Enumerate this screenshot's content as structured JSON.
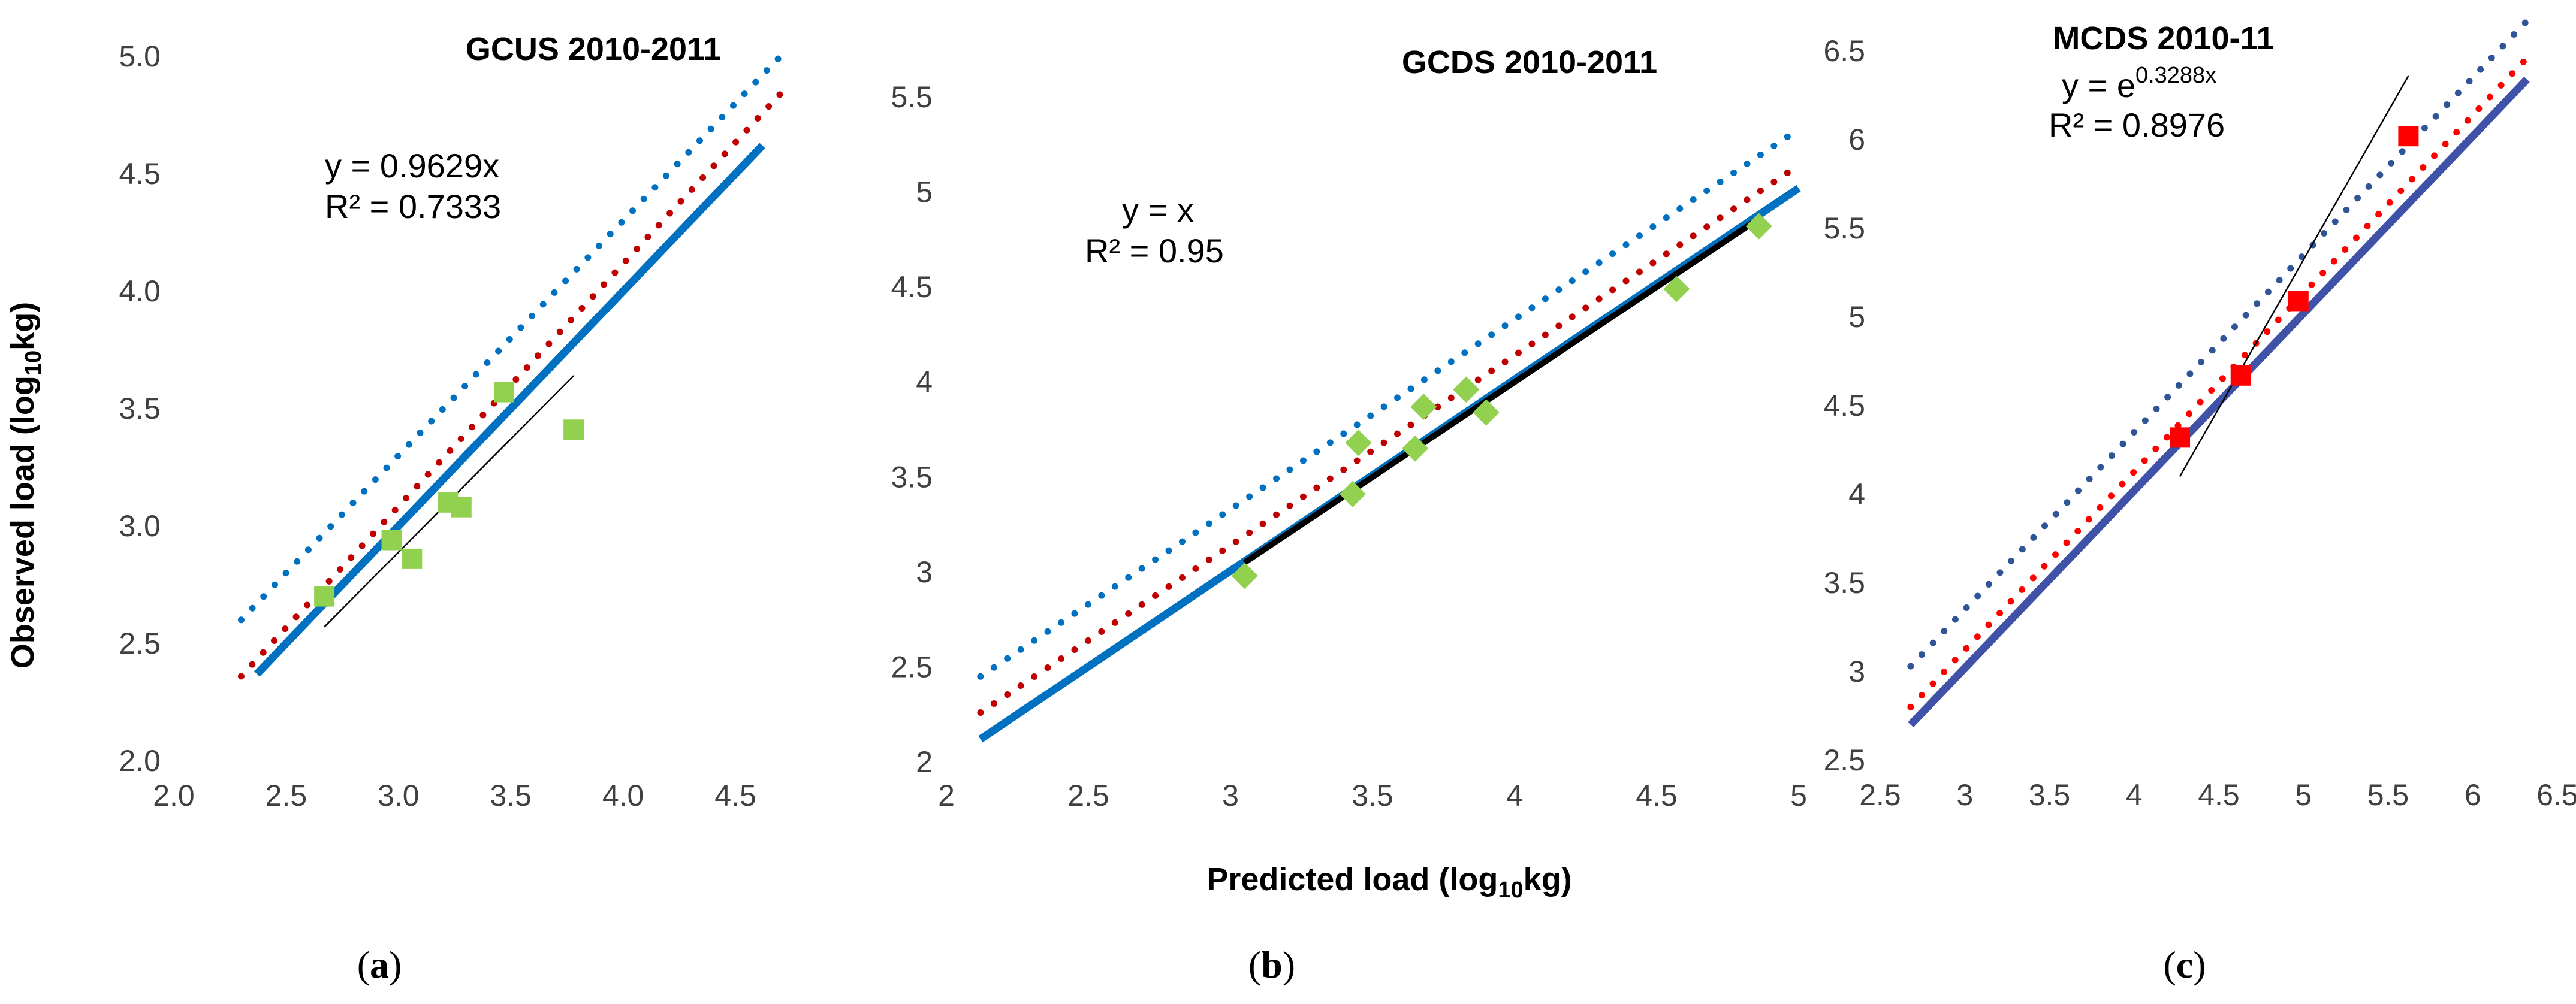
{
  "chart_data": [
    {
      "type": "scatter",
      "panel_label": "a",
      "title": "GCUS 2010-2011",
      "xlabel": "",
      "ylabel": "Observed load (log10kg)",
      "xlim": [
        2.0,
        4.7
      ],
      "ylim": [
        2.0,
        5.0
      ],
      "xticks": [
        "2.0",
        "2.5",
        "3.0",
        "3.5",
        "4.0",
        "4.5"
      ],
      "yticks": [
        "2.0",
        "2.5",
        "3.0",
        "3.5",
        "4.0",
        "4.5",
        "5.0"
      ],
      "equation": "y = 0.9629x",
      "r2": "R² = 0.7333",
      "points": {
        "x": [
          2.67,
          2.97,
          3.06,
          3.22,
          3.28,
          3.47,
          3.78
        ],
        "y": [
          2.7,
          2.94,
          2.86,
          3.1,
          3.08,
          3.57,
          3.41
        ],
        "color": "#92d050",
        "marker": "square"
      },
      "series": [
        {
          "name": "blue dotted",
          "x": [
            2.3,
            4.7
          ],
          "y": [
            2.6,
            5.0
          ],
          "style": "dotted",
          "color": "#0070c0"
        },
        {
          "name": "red dotted",
          "x": [
            2.3,
            4.7
          ],
          "y": [
            2.36,
            4.84
          ],
          "style": "dotted",
          "color": "#c00000"
        },
        {
          "name": "blue solid",
          "x": [
            2.37,
            4.62
          ],
          "y": [
            2.37,
            4.62
          ],
          "style": "solid",
          "color": "#0070c0"
        },
        {
          "name": "regression",
          "x": [
            2.67,
            3.78
          ],
          "y": [
            2.57,
            3.64
          ],
          "style": "thin",
          "color": "#000000"
        }
      ]
    },
    {
      "type": "scatter",
      "panel_label": "b",
      "title": "GCDS 2010-2011",
      "xlabel": "Predicted load (log10kg)",
      "ylabel": "",
      "xlim": [
        2,
        5
      ],
      "ylim": [
        2,
        5.5
      ],
      "xticks": [
        "2",
        "2.5",
        "3",
        "3.5",
        "4",
        "4.5",
        "5"
      ],
      "yticks": [
        "2",
        "2.5",
        "3",
        "3.5",
        "4",
        "4.5",
        "5",
        "5.5"
      ],
      "equation": "y = x",
      "r2": "R² = 0.95",
      "points": {
        "x": [
          3.05,
          3.43,
          3.45,
          3.65,
          3.68,
          3.83,
          3.9,
          4.57,
          4.86
        ],
        "y": [
          2.98,
          3.41,
          3.68,
          3.65,
          3.87,
          3.96,
          3.84,
          4.49,
          4.82
        ],
        "color": "#92d050",
        "marker": "diamond"
      },
      "series": [
        {
          "name": "blue dotted",
          "x": [
            2.12,
            5.0
          ],
          "y": [
            2.45,
            5.33
          ],
          "style": "dotted",
          "color": "#0070c0"
        },
        {
          "name": "red dotted",
          "x": [
            2.12,
            5.0
          ],
          "y": [
            2.26,
            5.14
          ],
          "style": "dotted",
          "color": "#c00000"
        },
        {
          "name": "blue solid",
          "x": [
            2.12,
            5.0
          ],
          "y": [
            2.12,
            5.02
          ],
          "style": "solid",
          "color": "#0070c0"
        },
        {
          "name": "regression",
          "x": [
            3.05,
            4.86
          ],
          "y": [
            3.05,
            4.86
          ],
          "style": "thick",
          "color": "#000000"
        }
      ]
    },
    {
      "type": "scatter",
      "panel_label": "c",
      "title": "MCDS 2010-11",
      "xlabel": "",
      "ylabel": "",
      "xlim": [
        2.5,
        6.5
      ],
      "ylim": [
        2.5,
        6.7
      ],
      "xticks": [
        "2.5",
        "3",
        "3.5",
        "4",
        "4.5",
        "5",
        "5.5",
        "6",
        "6.5"
      ],
      "yticks": [
        "2.5",
        "3",
        "3.5",
        "4",
        "4.5",
        "5",
        "5.5",
        "6",
        "6.5"
      ],
      "equation_base": "y = e",
      "equation_exp": "0.3288x",
      "r2": "R² = 0.8976",
      "points": {
        "x": [
          4.27,
          4.63,
          4.97,
          5.62
        ],
        "y": [
          4.32,
          4.67,
          5.09,
          6.02
        ],
        "color": "#ff0000",
        "marker": "square"
      },
      "series": [
        {
          "name": "navy dotted",
          "x": [
            2.68,
            6.32
          ],
          "y": [
            3.03,
            6.67
          ],
          "style": "dotted",
          "color": "#2f5597"
        },
        {
          "name": "red dotted",
          "x": [
            2.68,
            6.32
          ],
          "y": [
            2.8,
            6.46
          ],
          "style": "dotted",
          "color": "#ff0000"
        },
        {
          "name": "navy solid",
          "x": [
            2.68,
            6.32
          ],
          "y": [
            2.7,
            6.34
          ],
          "style": "solid",
          "color": "#4052a8"
        },
        {
          "name": "regression",
          "x": [
            4.27,
            5.62
          ],
          "y": [
            4.1,
            6.36
          ],
          "style": "thin",
          "color": "#000000"
        }
      ]
    }
  ]
}
